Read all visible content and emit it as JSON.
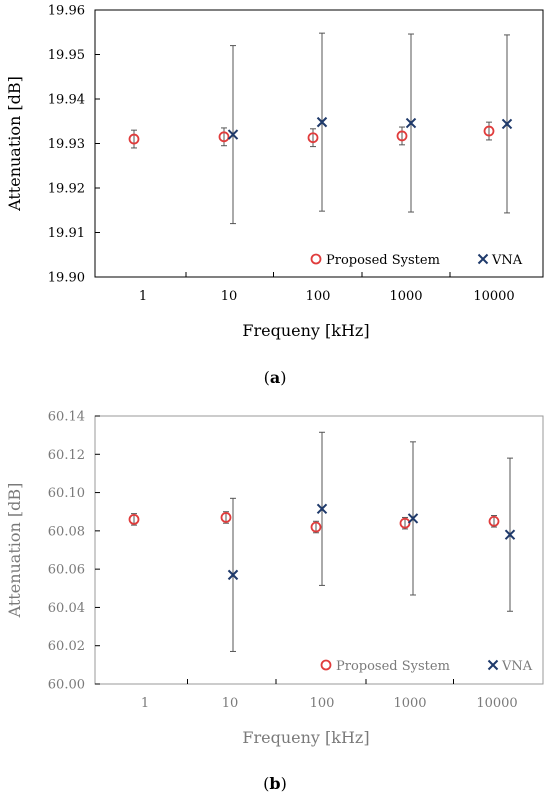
{
  "chart_data": [
    {
      "panel_label": "a",
      "type": "scatter",
      "xlabel": "Frequeny  [kHz]",
      "ylabel": "Attenuation [dB]",
      "x_scale": "log",
      "x_ticks": [
        1,
        10,
        100,
        1000,
        10000
      ],
      "x_tick_labels": [
        "1",
        "10",
        "100",
        "1000",
        "10000"
      ],
      "ylim": [
        19.9,
        19.96
      ],
      "y_ticks": [
        19.9,
        19.91,
        19.92,
        19.93,
        19.94,
        19.95,
        19.96
      ],
      "y_tick_labels": [
        "19.90",
        "19.91",
        "19.92",
        "19.93",
        "19.94",
        "19.95",
        "19.96"
      ],
      "grid": false,
      "legend_position": "bottom-right",
      "series": [
        {
          "name": "Proposed System",
          "marker": "circle",
          "color": "#e03c3c",
          "points": [
            {
              "x": 1,
              "y": 19.931,
              "err": 0.002
            },
            {
              "x": 10,
              "y": 19.9315,
              "err": 0.002
            },
            {
              "x": 100,
              "y": 19.9313,
              "err": 0.002
            },
            {
              "x": 1000,
              "y": 19.9317,
              "err": 0.002
            },
            {
              "x": 10000,
              "y": 19.9328,
              "err": 0.002
            }
          ]
        },
        {
          "name": "VNA",
          "marker": "x",
          "color": "#1f3a6b",
          "points": [
            {
              "x": 10,
              "y": 19.932,
              "err": 0.02
            },
            {
              "x": 100,
              "y": 19.9348,
              "err": 0.02
            },
            {
              "x": 1000,
              "y": 19.9346,
              "err": 0.02
            },
            {
              "x": 10000,
              "y": 19.9344,
              "err": 0.02
            }
          ]
        }
      ]
    },
    {
      "panel_label": "b",
      "type": "scatter",
      "xlabel": "Frequeny  [kHz]",
      "ylabel": "Attenuation [dB]",
      "x_scale": "log",
      "x_ticks": [
        1,
        10,
        100,
        1000,
        10000
      ],
      "x_tick_labels": [
        "1",
        "10",
        "100",
        "1000",
        "10000"
      ],
      "ylim": [
        60.0,
        60.14
      ],
      "y_ticks": [
        60.0,
        60.02,
        60.04,
        60.06,
        60.08,
        60.1,
        60.12,
        60.14
      ],
      "y_tick_labels": [
        "60.00",
        "60.02",
        "60.04",
        "60.06",
        "60.08",
        "60.10",
        "60.12",
        "60.14"
      ],
      "grid": false,
      "legend_position": "bottom-right",
      "series": [
        {
          "name": "Proposed System",
          "marker": "circle",
          "color": "#e03c3c",
          "points": [
            {
              "x": 1,
              "y": 60.086,
              "err": 0.003
            },
            {
              "x": 10,
              "y": 60.087,
              "err": 0.003
            },
            {
              "x": 100,
              "y": 60.082,
              "err": 0.003
            },
            {
              "x": 1000,
              "y": 60.084,
              "err": 0.003
            },
            {
              "x": 10000,
              "y": 60.085,
              "err": 0.003
            }
          ]
        },
        {
          "name": "VNA",
          "marker": "x",
          "color": "#1f3a6b",
          "points": [
            {
              "x": 10,
              "y": 60.057,
              "err": 0.04
            },
            {
              "x": 100,
              "y": 60.0915,
              "err": 0.04
            },
            {
              "x": 1000,
              "y": 60.0865,
              "err": 0.04
            },
            {
              "x": 10000,
              "y": 60.078,
              "err": 0.04
            }
          ]
        }
      ]
    }
  ]
}
